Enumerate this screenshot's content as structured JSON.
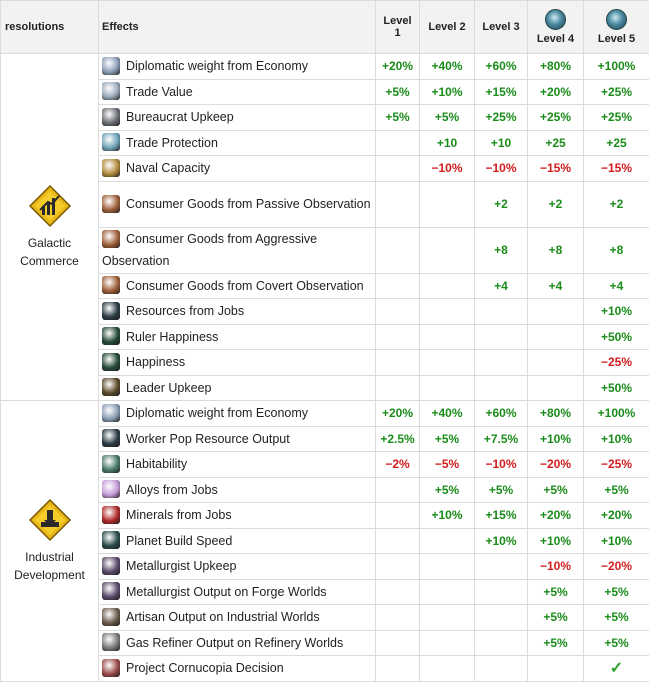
{
  "headers": {
    "resolutions": "resolutions",
    "effects": "Effects",
    "level1": "Level 1",
    "level2": "Level 2",
    "level3": "Level 3",
    "level4": "Level 4",
    "level5": "Level 5"
  },
  "groups": [
    {
      "name": "Galactic Commerce",
      "rows": [
        {
          "effect": "Diplomatic weight from Economy",
          "icon": "diplomatic-weight-icon",
          "color": "#8a9db5",
          "v": [
            "+20%",
            "+40%",
            "+60%",
            "+80%",
            "+100%"
          ]
        },
        {
          "effect": "Trade Value",
          "icon": "trade-value-icon",
          "color": "#9aa9b8",
          "v": [
            "+5%",
            "+10%",
            "+15%",
            "+20%",
            "+25%"
          ]
        },
        {
          "effect": "Bureaucrat Upkeep",
          "icon": "bureaucrat-icon",
          "color": "#6b6e74",
          "v": [
            "+5%",
            "+5%",
            "+25%",
            "+25%",
            "+25%"
          ]
        },
        {
          "effect": "Trade Protection",
          "icon": "trade-protection-icon",
          "color": "#6fa3b8",
          "v": [
            "",
            "+10",
            "+10",
            "+25",
            "+25"
          ]
        },
        {
          "effect": "Naval Capacity",
          "icon": "naval-capacity-icon",
          "color": "#b08a3c",
          "v": [
            "",
            "−10%",
            "−10%",
            "−15%",
            "−15%"
          ]
        },
        {
          "effect": "Consumer Goods from Passive Observation",
          "icon": "consumer-goods-icon",
          "color": "#a0603a",
          "v": [
            "",
            "",
            "+2",
            "+2",
            "+2"
          ]
        },
        {
          "effect": "Consumer Goods from Aggressive Observation",
          "icon": "consumer-goods-icon",
          "color": "#a0603a",
          "v": [
            "",
            "",
            "+8",
            "+8",
            "+8"
          ]
        },
        {
          "effect": "Consumer Goods from Covert Observation",
          "icon": "consumer-goods-icon",
          "color": "#a0603a",
          "v": [
            "",
            "",
            "+4",
            "+4",
            "+4"
          ]
        },
        {
          "effect": "Resources from Jobs",
          "icon": "jobs-icon",
          "color": "#2a3b44",
          "v": [
            "",
            "",
            "",
            "",
            "+10%"
          ]
        },
        {
          "effect": "Ruler Happiness",
          "icon": "ruler-happiness-icon",
          "color": "#264a38",
          "v": [
            "",
            "",
            "",
            "",
            "+50%"
          ]
        },
        {
          "effect": "Happiness",
          "icon": "happiness-icon",
          "color": "#264a38",
          "v": [
            "",
            "",
            "",
            "",
            "−25%"
          ]
        },
        {
          "effect": "Leader Upkeep",
          "icon": "leader-upkeep-icon",
          "color": "#5a4a2a",
          "v": [
            "",
            "",
            "",
            "",
            "+50%"
          ]
        }
      ]
    },
    {
      "name": "Industrial Development",
      "rows": [
        {
          "effect": "Diplomatic weight from Economy",
          "icon": "diplomatic-weight-icon",
          "color": "#8a9db5",
          "v": [
            "+20%",
            "+40%",
            "+60%",
            "+80%",
            "+100%"
          ]
        },
        {
          "effect": "Worker Pop Resource Output",
          "icon": "worker-pop-icon",
          "color": "#2a3b44",
          "v": [
            "+2.5%",
            "+5%",
            "+7.5%",
            "+10%",
            "+10%"
          ]
        },
        {
          "effect": "Habitability",
          "icon": "habitability-icon",
          "color": "#4a7a6a",
          "v": [
            "−2%",
            "−5%",
            "−10%",
            "−20%",
            "−25%"
          ]
        },
        {
          "effect": "Alloys from Jobs",
          "icon": "alloys-icon",
          "color": "#c49ad8",
          "v": [
            "",
            "+5%",
            "+5%",
            "+5%",
            "+5%"
          ]
        },
        {
          "effect": "Minerals from Jobs",
          "icon": "minerals-icon",
          "color": "#b02a2a",
          "v": [
            "",
            "+10%",
            "+15%",
            "+20%",
            "+20%"
          ]
        },
        {
          "effect": "Planet Build Speed",
          "icon": "build-speed-icon",
          "color": "#2a4a4a",
          "v": [
            "",
            "",
            "+10%",
            "+10%",
            "+10%"
          ]
        },
        {
          "effect": "Metallurgist Upkeep",
          "icon": "metallurgist-icon",
          "color": "#5a4a6a",
          "v": [
            "",
            "",
            "",
            "−10%",
            "−20%"
          ]
        },
        {
          "effect": "Metallurgist Output on Forge Worlds",
          "icon": "metallurgist-icon",
          "color": "#5a4a6a",
          "v": [
            "",
            "",
            "",
            "+5%",
            "+5%"
          ]
        },
        {
          "effect": "Artisan Output on Industrial Worlds",
          "icon": "artisan-icon",
          "color": "#6a5a4a",
          "v": [
            "",
            "",
            "",
            "+5%",
            "+5%"
          ]
        },
        {
          "effect": "Gas Refiner Output on Refinery Worlds",
          "icon": "gas-refiner-icon",
          "color": "#7a7a7a",
          "v": [
            "",
            "",
            "",
            "+5%",
            "+5%"
          ]
        },
        {
          "effect": "Project Cornucopia Decision",
          "icon": "project-cornucopia-icon",
          "color": "#9a4a4a",
          "v": [
            "",
            "",
            "",
            "",
            "✓"
          ]
        }
      ]
    }
  ],
  "colors": {
    "positive": "#1a8c1a",
    "negative": "#d01c1c",
    "header_bg": "#f2f2f2",
    "grid": "#dcdcdc"
  }
}
